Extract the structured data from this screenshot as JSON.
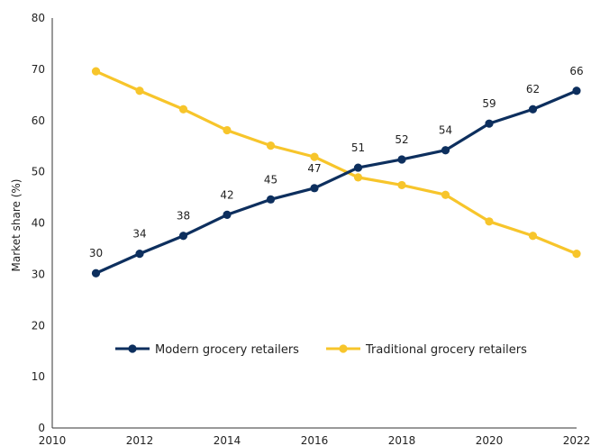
{
  "chart_data": {
    "type": "line",
    "xlabel": "",
    "ylabel": "Market share (%)",
    "xlim": [
      2010,
      2022
    ],
    "ylim": [
      0,
      80
    ],
    "xticks": [
      2010,
      2012,
      2014,
      2016,
      2018,
      2020,
      2022
    ],
    "yticks": [
      0,
      10,
      20,
      30,
      40,
      50,
      60,
      70,
      80
    ],
    "grid": false,
    "legend_position": "lower-center",
    "series": [
      {
        "name": "Modern grocery retailers",
        "color": "#0d2f5e",
        "x": [
          2011,
          2012,
          2013,
          2014,
          2015,
          2016,
          2017,
          2018,
          2019,
          2020,
          2021,
          2022
        ],
        "values": [
          30.2,
          34.0,
          37.5,
          41.6,
          44.6,
          46.8,
          50.8,
          52.4,
          54.2,
          59.4,
          62.2,
          65.8
        ],
        "labels": [
          "30",
          "34",
          "38",
          "42",
          "45",
          "47",
          "51",
          "52",
          "54",
          "59",
          "62",
          "66"
        ]
      },
      {
        "name": "Traditional grocery retailers",
        "color": "#f7c52b",
        "x": [
          2011,
          2012,
          2013,
          2014,
          2015,
          2016,
          2017,
          2018,
          2019,
          2020,
          2021,
          2022
        ],
        "values": [
          69.6,
          65.8,
          62.2,
          58.1,
          55.1,
          52.9,
          48.9,
          47.4,
          45.5,
          40.3,
          37.5,
          34.0
        ]
      }
    ]
  }
}
